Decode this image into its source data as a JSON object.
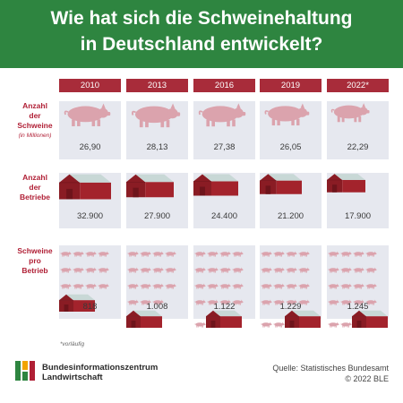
{
  "header": {
    "title_line1": "Wie hat sich die Schweinehaltung",
    "title_line2": "in Deutschland entwickelt?"
  },
  "rows": {
    "pigs": {
      "label_lines": [
        "Anzahl",
        "der",
        "Schweine"
      ],
      "sub": "(in Millionen)"
    },
    "farms": {
      "label_lines": [
        "Anzahl",
        "der",
        "Betriebe"
      ]
    },
    "per_farm": {
      "label_lines": [
        "Schweine",
        "pro",
        "Betrieb"
      ]
    }
  },
  "chart_data": {
    "type": "table",
    "title": "Wie hat sich die Schweinehaltung in Deutschland entwickelt?",
    "years": [
      "2010",
      "2013",
      "2016",
      "2019",
      "2022*"
    ],
    "series": [
      {
        "name": "Anzahl der Schweine (in Millionen)",
        "values": [
          26.9,
          28.13,
          27.38,
          26.05,
          22.29
        ],
        "labels": [
          "26,90",
          "28,13",
          "27,38",
          "26,05",
          "22,29"
        ]
      },
      {
        "name": "Anzahl der Betriebe",
        "values": [
          32900,
          27900,
          24400,
          21200,
          17900
        ],
        "labels": [
          "32.900",
          "27.900",
          "24.400",
          "21.200",
          "17.900"
        ]
      },
      {
        "name": "Schweine pro Betrieb",
        "values": [
          818,
          1008,
          1122,
          1229,
          1245
        ],
        "labels": [
          "818",
          "1.008",
          "1.122",
          "1.229",
          "1.245"
        ]
      }
    ]
  },
  "footnote": "*vorläufig",
  "logo": {
    "line1": "Bundesinformationszentrum",
    "line2": "Landwirtschaft"
  },
  "source": {
    "line1": "Quelle: Statistisches Bundesamt",
    "line2": "© 2022 BLE"
  },
  "colors": {
    "header": "#2e8540",
    "year_bar": "#a82c3a",
    "label_red": "#b01f35",
    "cell_bg": "#e6e8ef",
    "pig": "#dba3ad",
    "barn_red": "#a3232c",
    "roof": "#c8d8d6"
  },
  "icons": [
    "pig-icon",
    "barn-icon",
    "ble-logo-icon"
  ]
}
